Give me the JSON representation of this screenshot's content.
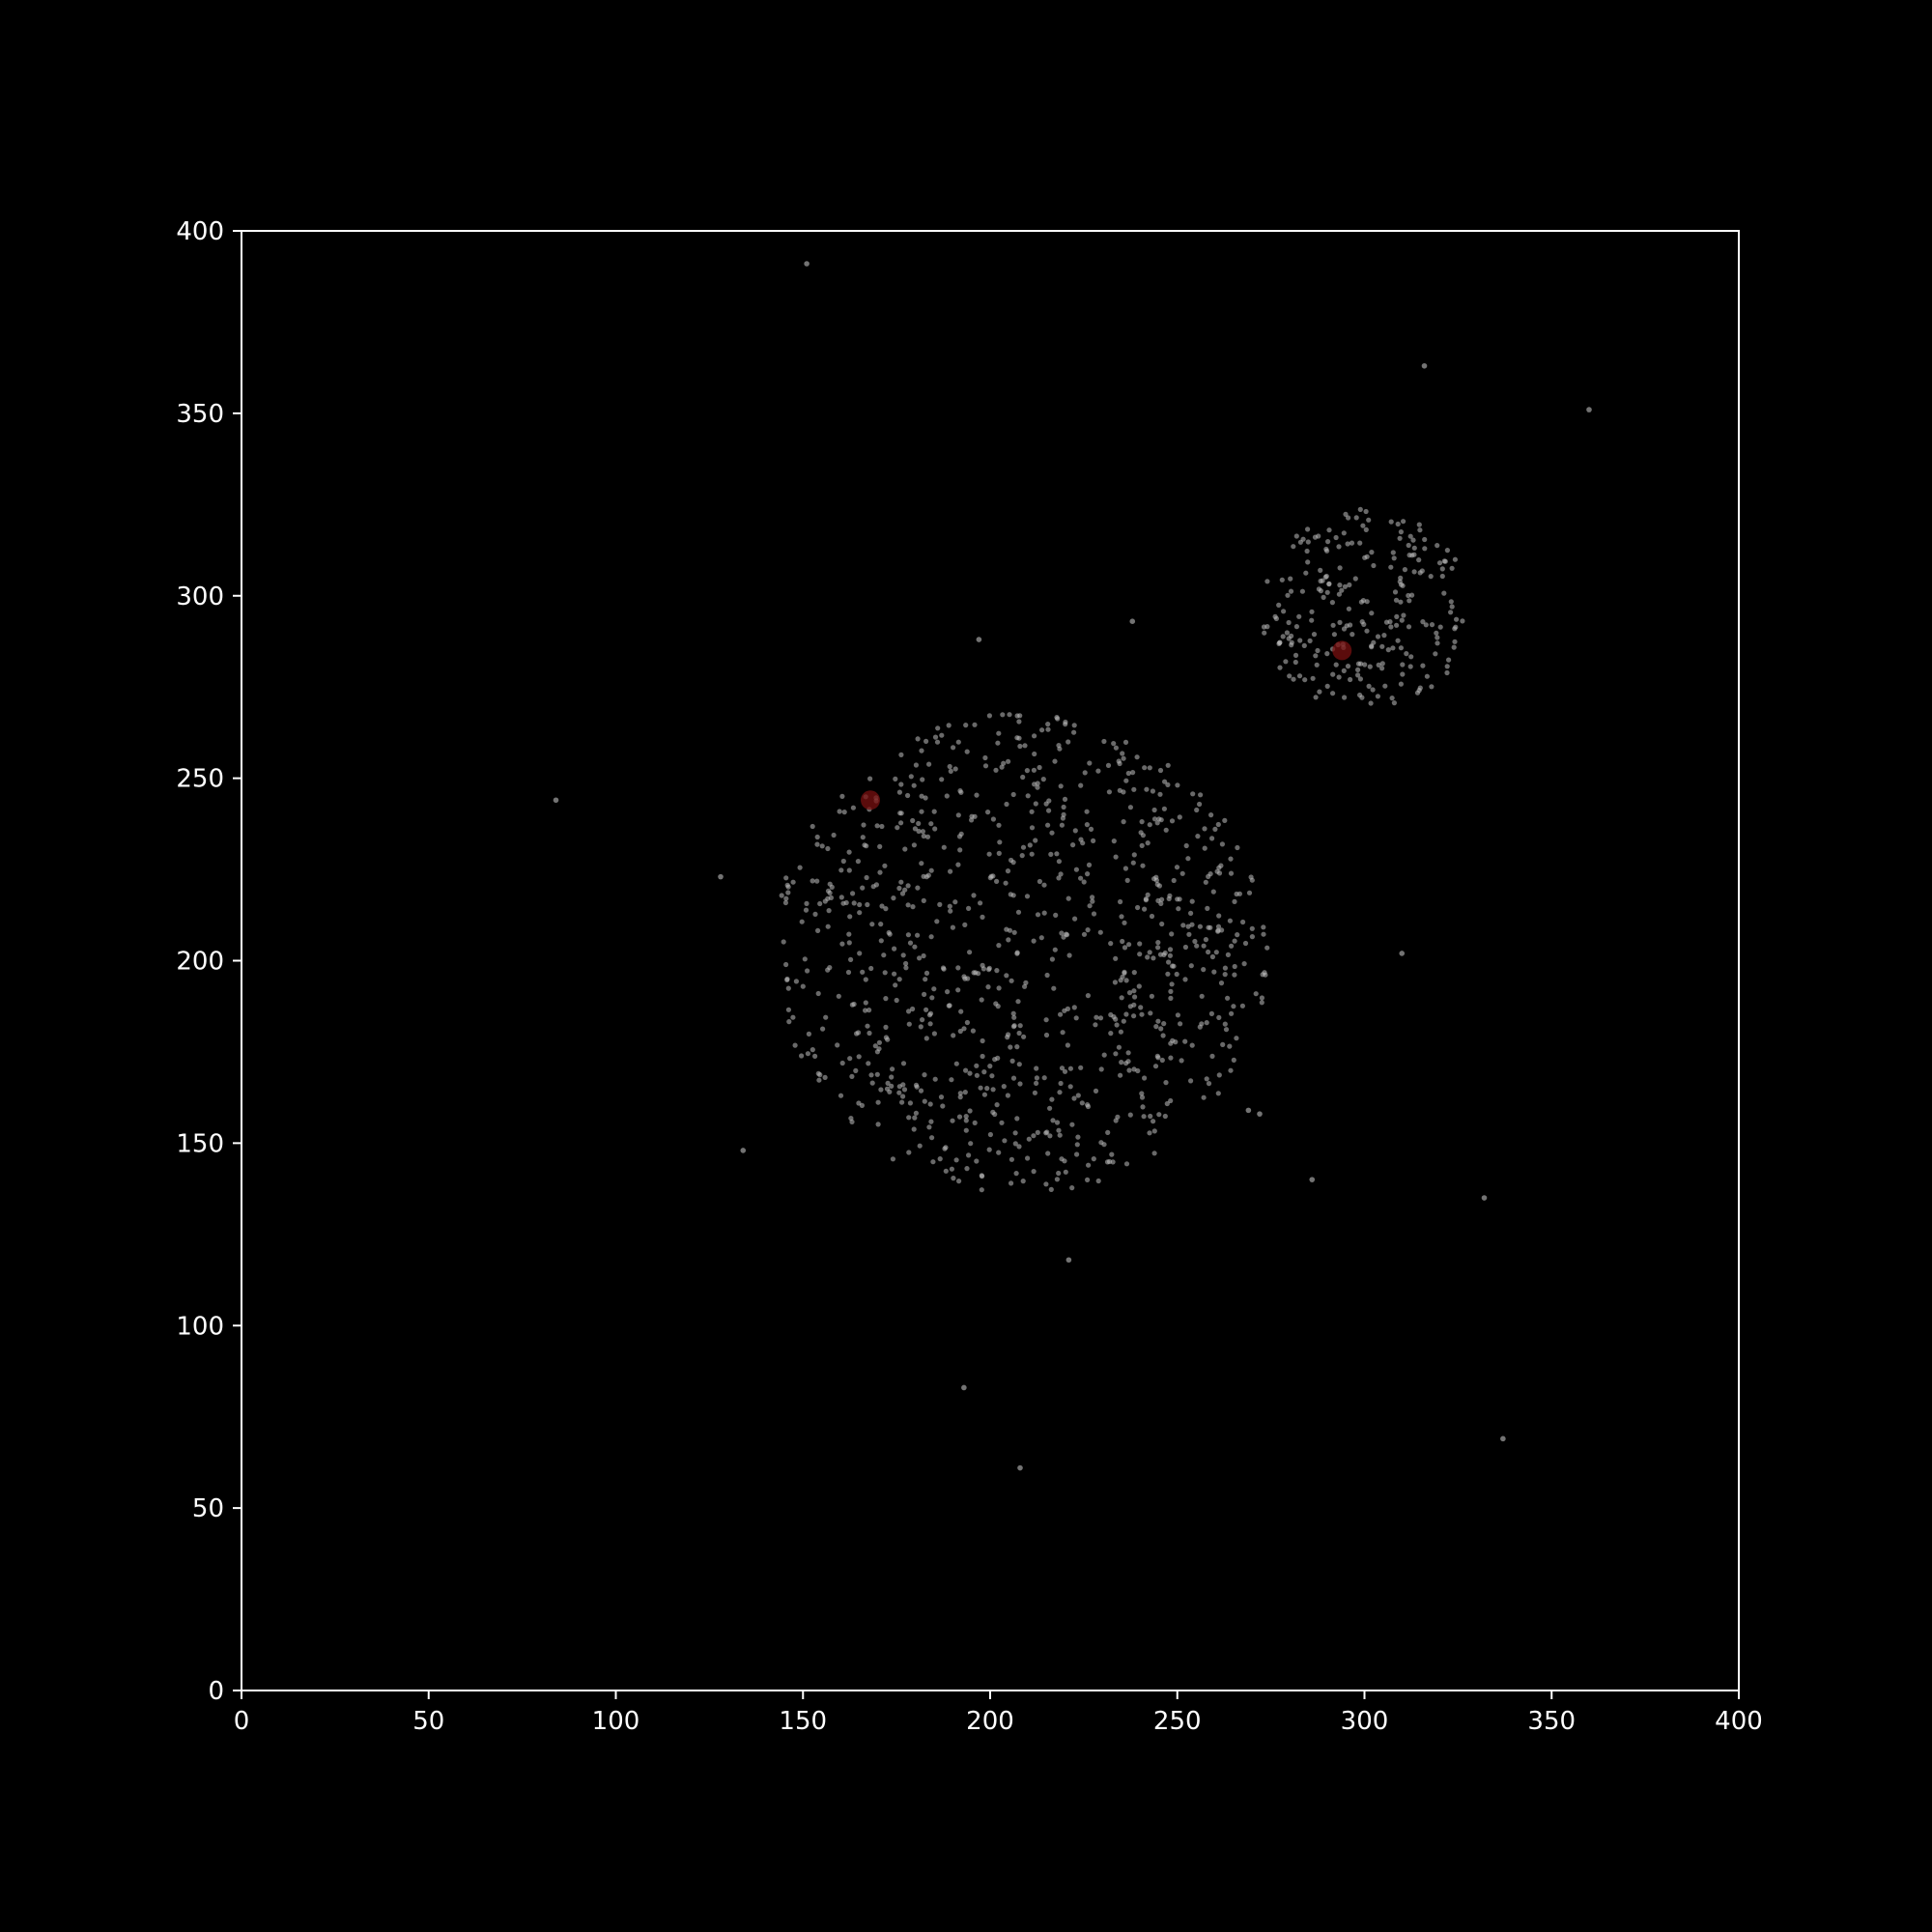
{
  "chart_data": {
    "type": "scatter",
    "title": "",
    "xlabel": "",
    "ylabel": "",
    "xlim": [
      0,
      400
    ],
    "ylim": [
      0,
      400
    ],
    "grid": false,
    "xticks": [
      "0",
      "50",
      "100",
      "150",
      "200",
      "250",
      "300",
      "350",
      "400"
    ],
    "yticks": [
      "0",
      "50",
      "100",
      "150",
      "200",
      "250",
      "300",
      "350",
      "400"
    ],
    "colors": {
      "background": "#000000",
      "axes": "#ffffff",
      "points": "#bfbfbf",
      "highlight": "#7a1010"
    },
    "clusters": [
      {
        "center": [
          208,
          202
        ],
        "radius": 66,
        "count": 900
      },
      {
        "center": [
          300,
          296
        ],
        "radius": 28,
        "count": 240
      }
    ],
    "outliers": [
      [
        151,
        391
      ],
      [
        316,
        363
      ],
      [
        360,
        351
      ],
      [
        84,
        244
      ],
      [
        128,
        223
      ],
      [
        197,
        288
      ],
      [
        238,
        293
      ],
      [
        310,
        202
      ],
      [
        134,
        148
      ],
      [
        269,
        159
      ],
      [
        272,
        158
      ],
      [
        286,
        140
      ],
      [
        332,
        135
      ],
      [
        221,
        118
      ],
      [
        193,
        83
      ],
      [
        208,
        61
      ],
      [
        337,
        69
      ]
    ],
    "highlights": [
      [
        168,
        244
      ],
      [
        294,
        285
      ]
    ]
  }
}
